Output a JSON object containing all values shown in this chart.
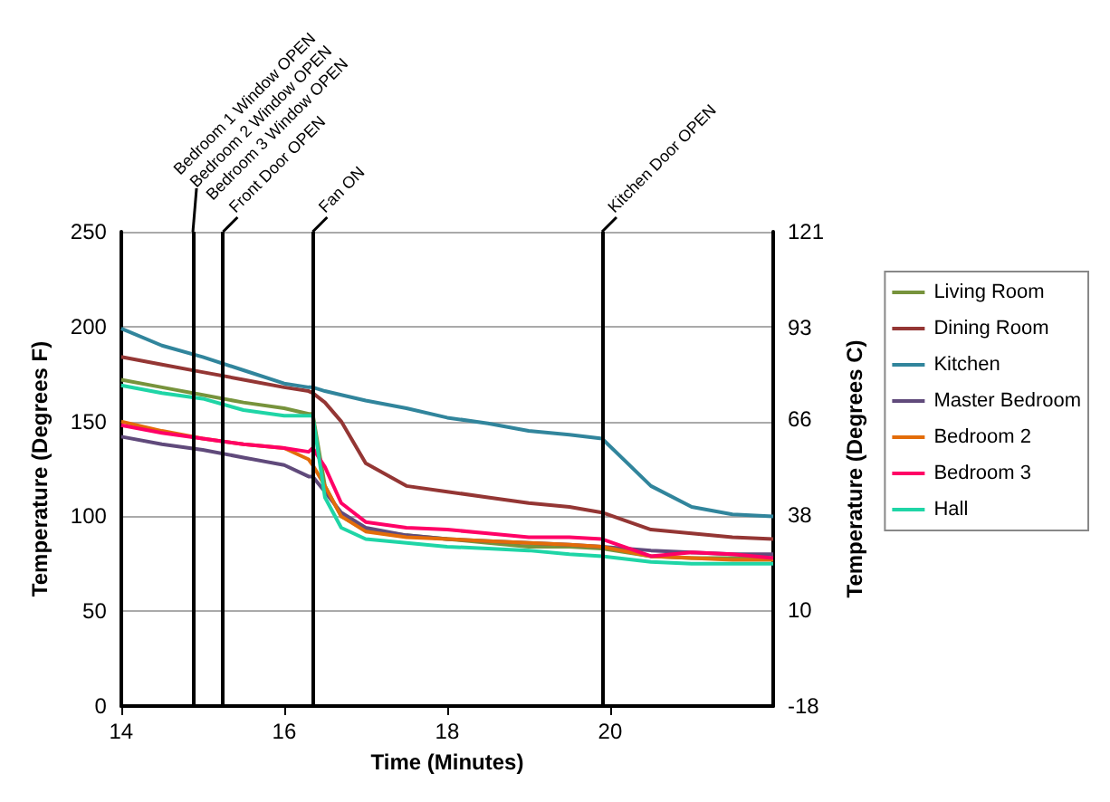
{
  "chart_data": {
    "type": "line",
    "xlabel": "Time (Minutes)",
    "ylabel": "Temperature (Degrees F)",
    "y2label": "Temperature (Degrees C)",
    "x": [
      14,
      14.5,
      15,
      15.5,
      16,
      16.3,
      16.35,
      16.5,
      16.7,
      17,
      17.5,
      18,
      18.5,
      19,
      19.5,
      19.9,
      20.5,
      21,
      21.5,
      22
    ],
    "series": [
      {
        "name": "Living Room",
        "color": "#77933c",
        "values": [
          172,
          168,
          164,
          160,
          157,
          154,
          154,
          116,
          100,
          93,
          90,
          88,
          86,
          84,
          84,
          83,
          79,
          78,
          78,
          78
        ]
      },
      {
        "name": "Dining Room",
        "color": "#943634",
        "values": [
          184,
          180,
          176,
          172,
          168,
          166,
          165,
          160,
          150,
          128,
          116,
          113,
          110,
          107,
          105,
          102,
          93,
          91,
          89,
          88
        ]
      },
      {
        "name": "Kitchen",
        "color": "#31859c",
        "values": [
          199,
          190,
          184,
          177,
          170,
          168,
          168,
          166,
          164,
          161,
          157,
          152,
          149,
          145,
          143,
          141,
          116,
          105,
          101,
          100
        ]
      },
      {
        "name": "Master Bedroom",
        "color": "#604a7b",
        "values": [
          142,
          138,
          135,
          131,
          127,
          121,
          121,
          113,
          102,
          94,
          90,
          88,
          87,
          86,
          85,
          84,
          82,
          81,
          80,
          80
        ]
      },
      {
        "name": "Bedroom 2",
        "color": "#e36c09",
        "values": [
          150,
          145,
          141,
          138,
          136,
          130,
          127,
          116,
          100,
          92,
          89,
          88,
          87,
          86,
          85,
          84,
          79,
          78,
          77,
          77
        ]
      },
      {
        "name": "Bedroom 3",
        "color": "#ff0066",
        "values": [
          148,
          144,
          141,
          138,
          136,
          134,
          136,
          126,
          107,
          97,
          94,
          93,
          91,
          89,
          89,
          88,
          79,
          81,
          80,
          78
        ]
      },
      {
        "name": "Hall",
        "color": "#1fd5a6",
        "values": [
          169,
          165,
          162,
          156,
          153,
          153,
          153,
          110,
          94,
          88,
          86,
          84,
          83,
          82,
          80,
          79,
          76,
          75,
          75,
          75
        ]
      }
    ],
    "xlim": [
      14,
      22
    ],
    "xticks": [
      14,
      16,
      18,
      20
    ],
    "ylim": [
      0,
      250
    ],
    "yticks": [
      0,
      50,
      100,
      150,
      200,
      250
    ],
    "y2lim": [
      -18,
      121
    ],
    "y2ticks": [
      -18,
      10,
      38,
      66,
      93,
      121
    ],
    "ref_lines": [
      {
        "axis": "x",
        "value": 14.88,
        "label": "Bedroom 1 Window OPEN",
        "color": "#000000"
      },
      {
        "axis": "x",
        "value": 15.25,
        "label": "Front Door OPEN",
        "color": "#000000"
      },
      {
        "axis": "x",
        "value": 16.35,
        "label": "Fan ON",
        "color": "#000000"
      },
      {
        "axis": "x",
        "value": 19.9,
        "label": "Kitchen Door OPEN",
        "color": "#000000"
      }
    ],
    "annotations": [
      "Bedroom 2 Window OPEN",
      "Bedroom 3 Window OPEN"
    ],
    "grid": "y",
    "legend": "right",
    "marker": "none",
    "line_style": "solid"
  }
}
